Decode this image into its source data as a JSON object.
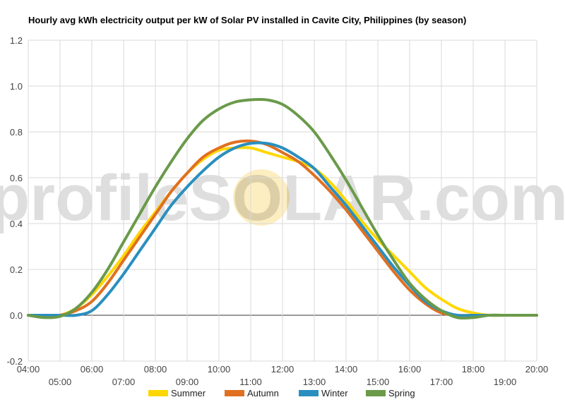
{
  "chart_data": {
    "type": "line",
    "title": "Hourly avg kWh electricity output per kW of Solar PV installed in Cavite City, Philippines (by season)",
    "xlabel": "",
    "ylabel": "",
    "ylim": [
      -0.2,
      1.2
    ],
    "yticks": [
      "-0.2",
      "0.0",
      "0.2",
      "0.4",
      "0.6",
      "0.8",
      "1.0",
      "1.2"
    ],
    "xlim": [
      4,
      20
    ],
    "xticks_upper": [
      "04:00",
      "06:00",
      "08:00",
      "10:00",
      "12:00",
      "14:00",
      "16:00",
      "18:00",
      "20:00"
    ],
    "xticks_lower": [
      "05:00",
      "07:00",
      "09:00",
      "11:00",
      "13:00",
      "15:00",
      "17:00",
      "19:00"
    ],
    "grid": true,
    "legend_position": "bottom",
    "watermark": "profileSOLAR.com",
    "x": [
      4,
      4.5,
      5,
      5.5,
      6,
      6.5,
      7,
      7.5,
      8,
      8.5,
      9,
      9.5,
      10,
      10.5,
      11,
      11.5,
      12,
      12.5,
      13,
      13.5,
      14,
      14.5,
      15,
      15.5,
      16,
      16.5,
      17,
      17.5,
      18,
      18.5,
      19,
      19.5,
      20
    ],
    "series": [
      {
        "name": "Summer",
        "color": "#FFD700",
        "values": [
          0,
          -0.005,
          0,
          0.03,
          0.09,
          0.17,
          0.26,
          0.36,
          0.45,
          0.54,
          0.62,
          0.68,
          0.72,
          0.73,
          0.73,
          0.71,
          0.69,
          0.67,
          0.64,
          0.58,
          0.5,
          0.41,
          0.33,
          0.26,
          0.19,
          0.12,
          0.07,
          0.03,
          0.01,
          0,
          0,
          0,
          0
        ]
      },
      {
        "name": "Autumn",
        "color": "#E07020",
        "values": [
          0,
          -0.005,
          0,
          0.02,
          0.06,
          0.14,
          0.24,
          0.34,
          0.44,
          0.54,
          0.62,
          0.69,
          0.73,
          0.755,
          0.76,
          0.745,
          0.71,
          0.67,
          0.61,
          0.54,
          0.46,
          0.37,
          0.28,
          0.19,
          0.11,
          0.05,
          0.01,
          0,
          0,
          0,
          0,
          0,
          0
        ]
      },
      {
        "name": "Winter",
        "color": "#2A8FBF",
        "values": [
          0,
          0,
          0,
          0,
          0.02,
          0.09,
          0.18,
          0.28,
          0.38,
          0.48,
          0.56,
          0.63,
          0.69,
          0.73,
          0.75,
          0.75,
          0.73,
          0.69,
          0.64,
          0.56,
          0.48,
          0.39,
          0.3,
          0.21,
          0.13,
          0.06,
          0.02,
          0,
          0,
          0,
          0,
          0,
          0
        ]
      },
      {
        "name": "Spring",
        "color": "#6A9A4A",
        "values": [
          0,
          -0.01,
          -0.005,
          0.03,
          0.1,
          0.2,
          0.32,
          0.44,
          0.56,
          0.67,
          0.77,
          0.85,
          0.9,
          0.93,
          0.94,
          0.94,
          0.92,
          0.87,
          0.8,
          0.7,
          0.59,
          0.47,
          0.35,
          0.24,
          0.14,
          0.07,
          0.02,
          -0.01,
          -0.01,
          0,
          0,
          0,
          0
        ]
      }
    ]
  }
}
